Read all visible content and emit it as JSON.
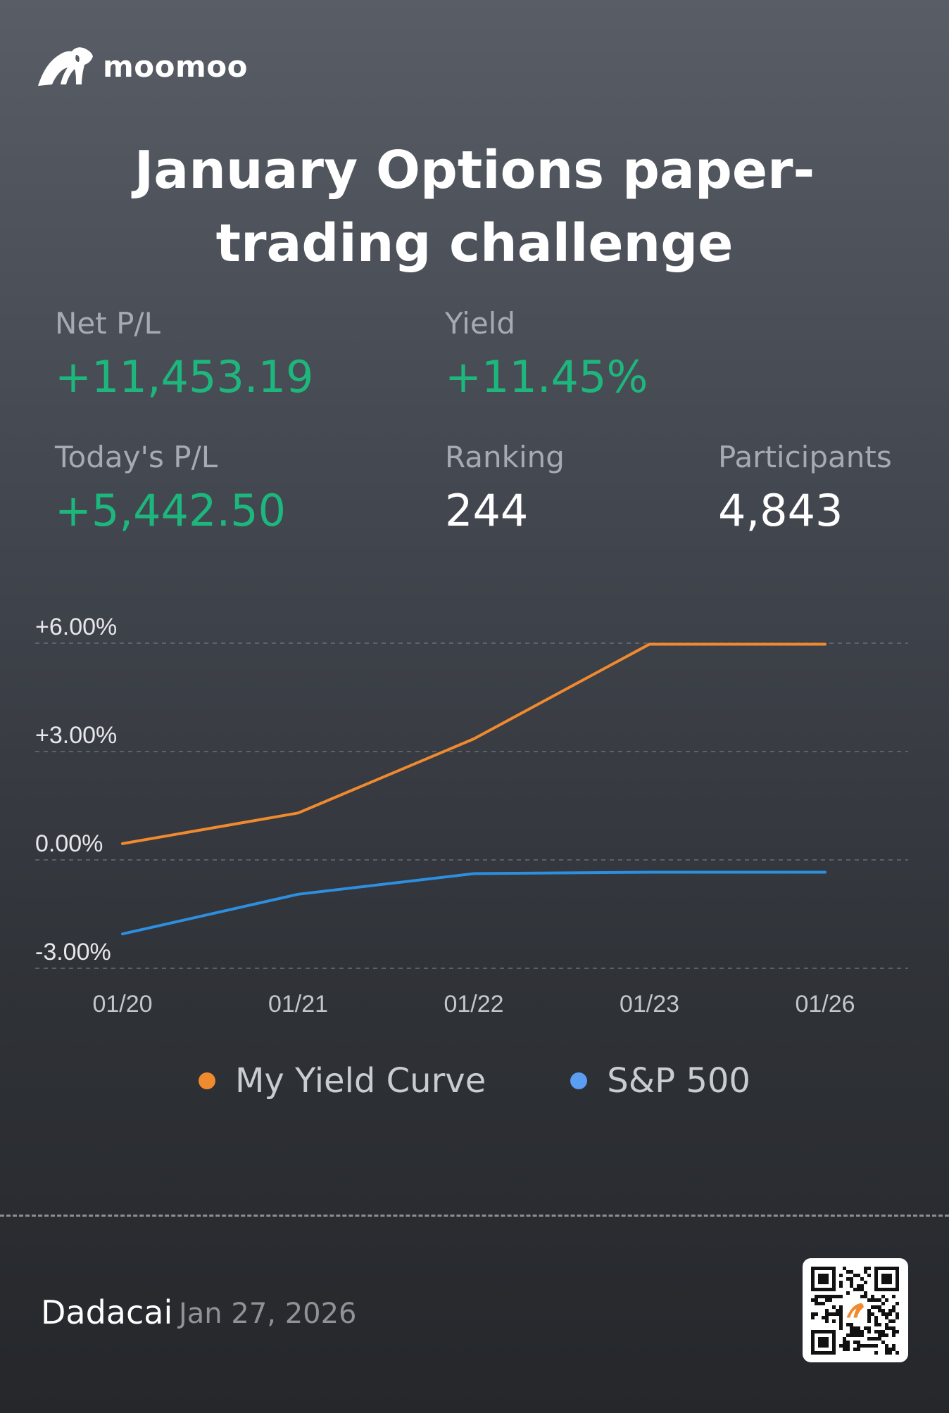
{
  "brand": {
    "name": "moomoo",
    "logo_icon": "bull-logo-icon"
  },
  "title": "January Options paper-trading challenge",
  "stats": {
    "net_pl": {
      "label": "Net P/L",
      "value": "+11,453.19"
    },
    "yield": {
      "label": "Yield",
      "value": "+11.45%"
    },
    "todays_pl": {
      "label": "Today's P/L",
      "value": "+5,442.50"
    },
    "ranking": {
      "label": "Ranking",
      "value": "244"
    },
    "participants": {
      "label": "Participants",
      "value": "4,843"
    }
  },
  "colors": {
    "positive": "#1db77d",
    "my_yield": "#f08a2e",
    "sp500": "#2d8fe0",
    "legend_sp500_dot": "#5b9df0"
  },
  "chart_data": {
    "type": "line",
    "categories": [
      "01/20",
      "01/21",
      "01/22",
      "01/23",
      "01/26"
    ],
    "y_tick_labels": [
      "+6.00%",
      "+3.00%",
      "0.00%",
      "-3.00%"
    ],
    "y_ticks": [
      6,
      3,
      0,
      -3
    ],
    "ylim": [
      -3,
      6
    ],
    "grid": true,
    "legend_position": "bottom",
    "series": [
      {
        "name": "My Yield Curve",
        "color": "#f08a2e",
        "values": [
          0.45,
          1.3,
          3.35,
          5.97,
          5.97
        ]
      },
      {
        "name": "S&P 500",
        "color": "#2d8fe0",
        "values": [
          -2.05,
          -0.95,
          -0.38,
          -0.34,
          -0.34
        ]
      }
    ]
  },
  "footer": {
    "user": "Dadacai",
    "date": "Jan 27, 2026",
    "qr_icon": "qr-code-icon"
  }
}
